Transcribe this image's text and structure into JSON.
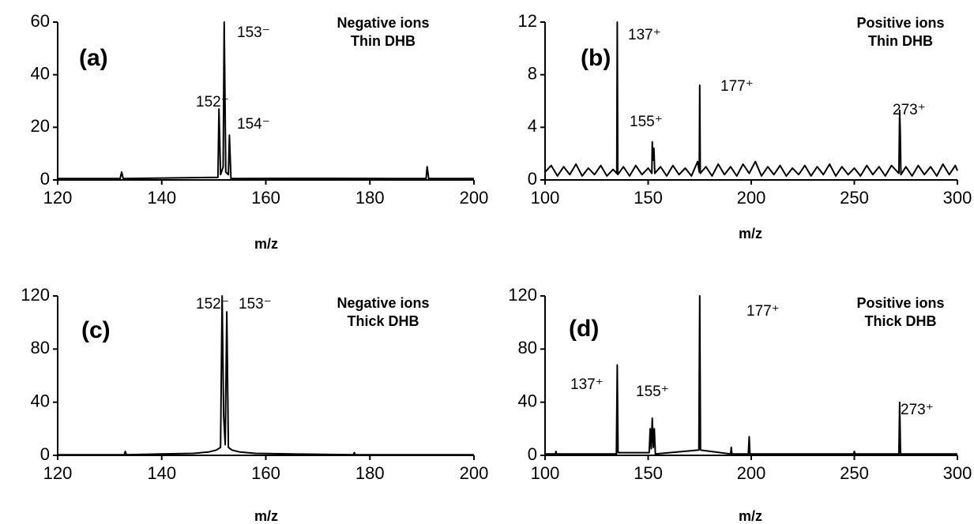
{
  "chart_data": [
    {
      "type": "line",
      "panel_label": "(a)",
      "notes": [
        "Negative ions",
        "Thin DHB"
      ],
      "x_label": "m/z",
      "annotations": [
        "153⁻",
        "152⁻",
        "154⁻"
      ],
      "xlim": [
        120,
        200
      ],
      "xticks": [
        120,
        140,
        160,
        180,
        200
      ],
      "ylim": [
        0,
        60
      ],
      "yticks": [
        0,
        20,
        40,
        60
      ],
      "series": [
        {
          "color": "#000000",
          "x": [
            120,
            132,
            132.3,
            132.6,
            150.8,
            151,
            151.3,
            151.8,
            152,
            152.3,
            152.8,
            153,
            153.3,
            170,
            190.8,
            191,
            191.3,
            200
          ],
          "values": [
            0.5,
            0.5,
            3,
            0.5,
            1,
            27,
            2,
            5,
            60,
            3,
            2,
            17,
            0.5,
            0.6,
            0.5,
            5,
            0.5,
            0.5
          ]
        }
      ]
    },
    {
      "type": "line",
      "panel_label": "(b)",
      "notes": [
        "Positive ions",
        "Thin DHB"
      ],
      "x_label": "m/z",
      "annotations": [
        "137⁺",
        "155⁺",
        "177⁺",
        "273⁺"
      ],
      "xlim": [
        100,
        300
      ],
      "xticks": [
        100,
        150,
        200,
        250,
        300
      ],
      "ylim": [
        0,
        12
      ],
      "yticks": [
        0,
        4,
        8,
        12
      ],
      "series": [
        {
          "color": "#000000",
          "x": [
            100,
            103,
            106,
            109,
            112,
            115,
            118,
            121,
            124,
            127,
            130,
            133,
            134.8,
            135,
            135.3,
            138,
            141,
            144,
            147,
            150,
            151.8,
            152,
            152.4,
            152.8,
            153.2,
            156,
            159,
            162,
            165,
            168,
            171,
            174,
            174.8,
            175,
            175.3,
            178,
            181,
            184,
            187,
            190,
            193,
            196,
            199,
            202,
            205,
            208,
            211,
            214,
            217,
            220,
            223,
            226,
            229,
            232,
            235,
            238,
            241,
            244,
            247,
            250,
            253,
            256,
            259,
            262,
            265,
            268,
            271.6,
            272,
            272.3,
            272.6,
            275,
            278,
            281,
            284,
            287,
            290,
            293,
            296,
            299,
            300
          ],
          "values": [
            0.6,
            1.1,
            0.3,
            1.0,
            0.4,
            1.2,
            0.3,
            0.9,
            0.4,
            1.1,
            0.3,
            0.8,
            0.5,
            12,
            0.4,
            1.0,
            0.3,
            1.1,
            0.4,
            0.9,
            0.5,
            2.9,
            1.5,
            2.4,
            0.5,
            1.0,
            0.3,
            1.1,
            0.4,
            0.9,
            0.3,
            1.4,
            0.6,
            7.2,
            0.5,
            1.0,
            0.3,
            1.2,
            0.4,
            1.0,
            0.3,
            1.2,
            0.5,
            1.4,
            0.3,
            1.0,
            0.4,
            1.1,
            0.3,
            0.9,
            0.4,
            1.1,
            0.3,
            1.0,
            0.4,
            1.2,
            0.3,
            1.0,
            0.4,
            0.9,
            0.3,
            1.1,
            0.4,
            1.0,
            0.3,
            1.1,
            0.5,
            5.3,
            3.5,
            0.4,
            1.0,
            0.3,
            1.1,
            0.4,
            1.0,
            0.3,
            1.2,
            0.4,
            1.1,
            0.7
          ]
        }
      ]
    },
    {
      "type": "line",
      "panel_label": "(c)",
      "notes": [
        "Negative ions",
        "Thick DHB"
      ],
      "x_label": "m/z",
      "annotations": [
        "152⁻",
        "153⁻"
      ],
      "xlim": [
        120,
        200
      ],
      "xticks": [
        120,
        140,
        160,
        180,
        200
      ],
      "ylim": [
        0,
        120
      ],
      "yticks": [
        0,
        40,
        80,
        120
      ],
      "series": [
        {
          "color": "#000000",
          "x": [
            120,
            132.8,
            133,
            133.2,
            140,
            146,
            149,
            150.5,
            151.3,
            151.6,
            151.9,
            152.2,
            152.5,
            152.8,
            153.5,
            155,
            158,
            165,
            176.8,
            177,
            177.2,
            200
          ],
          "values": [
            0.5,
            0.5,
            3,
            0.5,
            1,
            1.5,
            2.5,
            4,
            6,
            120,
            30,
            8,
            108,
            6,
            4,
            2.5,
            1.5,
            1,
            0.5,
            2,
            0.5,
            0.5
          ]
        }
      ]
    },
    {
      "type": "line",
      "panel_label": "(d)",
      "notes": [
        "Positive ions",
        "Thick DHB"
      ],
      "x_label": "m/z",
      "annotations": [
        "137⁺",
        "155⁺",
        "177⁺",
        "273⁺"
      ],
      "xlim": [
        100,
        300
      ],
      "xticks": [
        100,
        150,
        200,
        250,
        300
      ],
      "ylim": [
        0,
        120
      ],
      "yticks": [
        0,
        40,
        80,
        120
      ],
      "series": [
        {
          "color": "#000000",
          "x": [
            100,
            105,
            105.3,
            105.6,
            134.6,
            135,
            135.4,
            150.5,
            151,
            151.5,
            152,
            152.5,
            153,
            153.5,
            174.6,
            175,
            175.4,
            190,
            190.3,
            190.6,
            198.6,
            199,
            199.4,
            249.6,
            250,
            250.4,
            271.6,
            272,
            272.4,
            300
          ],
          "values": [
            1,
            1,
            3,
            1,
            1,
            68,
            2,
            2,
            20,
            5,
            28,
            6,
            20,
            1,
            4,
            120,
            4,
            1,
            6,
            1,
            1,
            14,
            1,
            1,
            3,
            1,
            1,
            40,
            1,
            1
          ]
        }
      ]
    }
  ]
}
